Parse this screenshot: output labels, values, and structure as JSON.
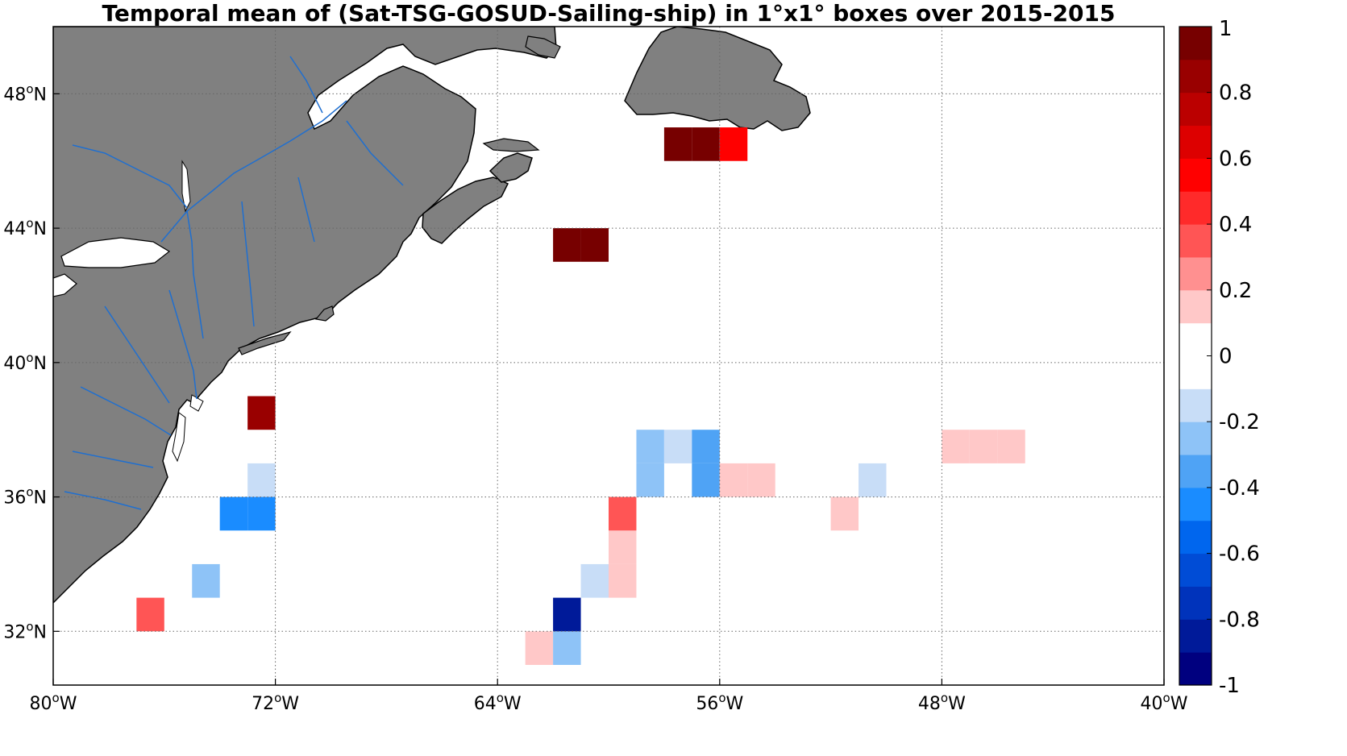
{
  "title": "Temporal mean of (Sat-TSG-GOSUD-Sailing-ship) in 1°x1° boxes over 2015-2015",
  "map": {
    "lon_range": [
      -80,
      -40
    ],
    "lat_range": [
      30.4,
      50
    ],
    "land_color": "#808080",
    "water_color": "#ffffff",
    "river_color": "#1f6fd0",
    "coast_color": "#000000",
    "grid": {
      "style": "dotted",
      "lon_lines": [
        -72,
        -64,
        -56,
        -48
      ],
      "lat_lines": [
        32,
        36,
        40,
        44,
        48
      ]
    },
    "x_ticks": [
      {
        "lon": -80,
        "label": "80",
        "sup": "o",
        "hemi": "W"
      },
      {
        "lon": -72,
        "label": "72",
        "sup": "o",
        "hemi": "W"
      },
      {
        "lon": -64,
        "label": "64",
        "sup": "o",
        "hemi": "W"
      },
      {
        "lon": -56,
        "label": "56",
        "sup": "o",
        "hemi": "W"
      },
      {
        "lon": -48,
        "label": "48",
        "sup": "o",
        "hemi": "W"
      },
      {
        "lon": -40,
        "label": "40",
        "sup": "o",
        "hemi": "W"
      }
    ],
    "y_ticks": [
      {
        "lat": 32,
        "label": "32",
        "sup": "o",
        "hemi": "N"
      },
      {
        "lat": 36,
        "label": "36",
        "sup": "o",
        "hemi": "N"
      },
      {
        "lat": 40,
        "label": "40",
        "sup": "o",
        "hemi": "N"
      },
      {
        "lat": 44,
        "label": "44",
        "sup": "o",
        "hemi": "N"
      },
      {
        "lat": 48,
        "label": "48",
        "sup": "o",
        "hemi": "N"
      }
    ]
  },
  "chart_data": {
    "type": "heatmap",
    "title": "Temporal mean of (Sat-TSG-GOSUD-Sailing-ship) in 1°x1° boxes over 2015-2015",
    "cell_size_deg": 1,
    "cells": [
      {
        "lon": -57.5,
        "lat": 46.5,
        "value": 1.0
      },
      {
        "lon": -56.5,
        "lat": 46.5,
        "value": 1.0
      },
      {
        "lon": -55.5,
        "lat": 46.5,
        "value": 0.5
      },
      {
        "lon": -61.5,
        "lat": 43.5,
        "value": 1.0
      },
      {
        "lon": -60.5,
        "lat": 43.5,
        "value": 1.0
      },
      {
        "lon": -72.5,
        "lat": 38.5,
        "value": 0.8
      },
      {
        "lon": -72.5,
        "lat": 36.5,
        "value": -0.15
      },
      {
        "lon": -73.5,
        "lat": 35.5,
        "value": -0.45
      },
      {
        "lon": -72.5,
        "lat": 35.5,
        "value": -0.45
      },
      {
        "lon": -74.5,
        "lat": 33.5,
        "value": -0.25
      },
      {
        "lon": -76.5,
        "lat": 32.5,
        "value": 0.35
      },
      {
        "lon": -62.5,
        "lat": 31.5,
        "value": 0.15
      },
      {
        "lon": -61.5,
        "lat": 31.5,
        "value": -0.25
      },
      {
        "lon": -61.5,
        "lat": 32.5,
        "value": -0.85
      },
      {
        "lon": -60.5,
        "lat": 33.5,
        "value": -0.15
      },
      {
        "lon": -59.5,
        "lat": 33.5,
        "value": 0.15
      },
      {
        "lon": -59.5,
        "lat": 34.5,
        "value": 0.15
      },
      {
        "lon": -59.5,
        "lat": 35.5,
        "value": 0.35
      },
      {
        "lon": -58.5,
        "lat": 36.5,
        "value": -0.25
      },
      {
        "lon": -58.5,
        "lat": 37.5,
        "value": -0.25
      },
      {
        "lon": -57.5,
        "lat": 37.5,
        "value": -0.15
      },
      {
        "lon": -56.5,
        "lat": 36.5,
        "value": -0.35
      },
      {
        "lon": -56.5,
        "lat": 37.5,
        "value": -0.35
      },
      {
        "lon": -55.5,
        "lat": 36.5,
        "value": 0.15
      },
      {
        "lon": -54.5,
        "lat": 36.5,
        "value": 0.15
      },
      {
        "lon": -51.5,
        "lat": 35.5,
        "value": 0.15
      },
      {
        "lon": -50.5,
        "lat": 36.5,
        "value": -0.15
      },
      {
        "lon": -47.5,
        "lat": 37.5,
        "value": 0.15
      },
      {
        "lon": -46.5,
        "lat": 37.5,
        "value": 0.15
      },
      {
        "lon": -45.5,
        "lat": 37.5,
        "value": 0.15
      }
    ]
  },
  "colorbar": {
    "range": [
      -1,
      1
    ],
    "colors": [
      "#00007f",
      "#001a99",
      "#0033bb",
      "#004cd6",
      "#0066ee",
      "#1a8cff",
      "#4fa3f5",
      "#8ec3f7",
      "#c8ddf7",
      "#ffffff",
      "#ffffff",
      "#ffc8c8",
      "#ff9090",
      "#ff5555",
      "#ff2a2a",
      "#ff0000",
      "#dd0000",
      "#bb0000",
      "#990000",
      "#770000"
    ],
    "ticks": [
      {
        "value": 1,
        "label": "1"
      },
      {
        "value": 0.8,
        "label": "0.8"
      },
      {
        "value": 0.6,
        "label": "0.6"
      },
      {
        "value": 0.4,
        "label": "0.4"
      },
      {
        "value": 0.2,
        "label": "0.2"
      },
      {
        "value": 0,
        "label": "0"
      },
      {
        "value": -0.2,
        "label": "-0.2"
      },
      {
        "value": -0.4,
        "label": "-0.4"
      },
      {
        "value": -0.6,
        "label": "-0.6"
      },
      {
        "value": -0.8,
        "label": "-0.8"
      },
      {
        "value": -1,
        "label": "-1"
      }
    ]
  }
}
